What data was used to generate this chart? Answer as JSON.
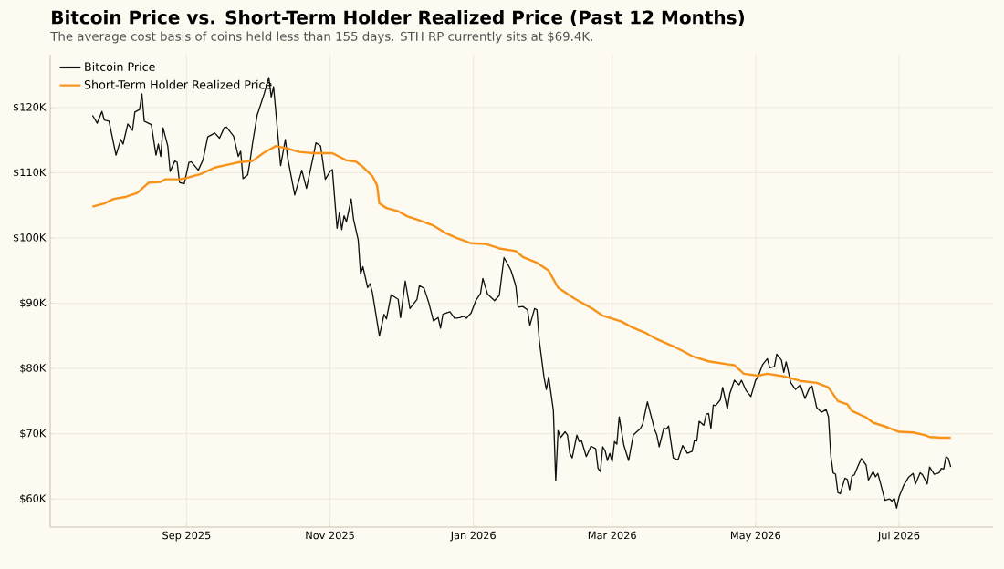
{
  "chart_data": {
    "type": "line",
    "title": "Bitcoin Price vs. Short-Term Holder Realized Price (Past 12 Months)",
    "subtitle": "The average cost basis of coins held less than 155 days. STH RP currently sits at $69.4K.",
    "xlim": [
      "2025-07-05",
      "2026-08-10"
    ],
    "xticks": [
      {
        "value": "2025-09-01",
        "label": "Sep 2025"
      },
      {
        "value": "2025-11-01",
        "label": "Nov 2025"
      },
      {
        "value": "2026-01-01",
        "label": "Jan 2026"
      },
      {
        "value": "2026-03-01",
        "label": "Mar 2026"
      },
      {
        "value": "2026-05-01",
        "label": "May 2026"
      },
      {
        "value": "2026-07-01",
        "label": "Jul 2026"
      }
    ],
    "ylim": [
      55700,
      128100
    ],
    "yticks": [
      {
        "value": 60000,
        "label": "$60K"
      },
      {
        "value": 70000,
        "label": "$70K"
      },
      {
        "value": 80000,
        "label": "$80K"
      },
      {
        "value": 90000,
        "label": "$90K"
      },
      {
        "value": 100000,
        "label": "$100K"
      },
      {
        "value": 110000,
        "label": "$110K"
      },
      {
        "value": 120000,
        "label": "$120K"
      }
    ],
    "grid": true,
    "legend": "top left",
    "marker": "none",
    "line_style": "solid",
    "series": [
      {
        "name": "Bitcoin Price",
        "color": "#111111",
        "x": [
          "2025-07-23",
          "2025-07-25",
          "2025-07-27",
          "2025-07-28",
          "2025-07-30",
          "2025-08-02",
          "2025-08-04",
          "2025-08-05",
          "2025-08-07",
          "2025-08-09",
          "2025-08-10",
          "2025-08-12",
          "2025-08-13",
          "2025-08-14",
          "2025-08-17",
          "2025-08-19",
          "2025-08-20",
          "2025-08-21",
          "2025-08-22",
          "2025-08-24",
          "2025-08-25",
          "2025-08-27",
          "2025-08-28",
          "2025-08-29",
          "2025-08-31",
          "2025-09-02",
          "2025-09-03",
          "2025-09-06",
          "2025-09-08",
          "2025-09-10",
          "2025-09-13",
          "2025-09-15",
          "2025-09-17",
          "2025-09-18",
          "2025-09-21",
          "2025-09-23",
          "2025-09-24",
          "2025-09-25",
          "2025-09-27",
          "2025-09-28",
          "2025-09-29",
          "2025-10-01",
          "2025-10-04",
          "2025-10-06",
          "2025-10-07",
          "2025-10-08",
          "2025-10-10",
          "2025-10-11",
          "2025-10-13",
          "2025-10-14",
          "2025-10-17",
          "2025-10-20",
          "2025-10-22",
          "2025-10-25",
          "2025-10-26",
          "2025-10-28",
          "2025-10-30",
          "2025-11-01",
          "2025-11-02",
          "2025-11-04",
          "2025-11-05",
          "2025-11-06",
          "2025-11-07",
          "2025-11-08",
          "2025-11-10",
          "2025-11-11",
          "2025-11-13",
          "2025-11-14",
          "2025-11-15",
          "2025-11-17",
          "2025-11-18",
          "2025-11-19",
          "2025-11-22",
          "2025-11-24",
          "2025-11-25",
          "2025-11-27",
          "2025-11-30",
          "2025-12-01",
          "2025-12-03",
          "2025-12-05",
          "2025-12-08",
          "2025-12-09",
          "2025-12-11",
          "2025-12-13",
          "2025-12-15",
          "2025-12-17",
          "2025-12-18",
          "2025-12-19",
          "2025-12-22",
          "2025-12-24",
          "2025-12-26",
          "2025-12-28",
          "2025-12-29",
          "2025-12-31",
          "2026-01-02",
          "2026-01-04",
          "2026-01-05",
          "2026-01-07",
          "2026-01-10",
          "2026-01-12",
          "2026-01-14",
          "2026-01-16",
          "2026-01-17",
          "2026-01-19",
          "2026-01-20",
          "2026-01-22",
          "2026-01-24",
          "2026-01-25",
          "2026-01-27",
          "2026-01-28",
          "2026-01-29",
          "2026-01-31",
          "2026-02-01",
          "2026-02-02",
          "2026-02-04",
          "2026-02-05",
          "2026-02-06",
          "2026-02-07",
          "2026-02-09",
          "2026-02-10",
          "2026-02-11",
          "2026-02-12",
          "2026-02-14",
          "2026-02-15",
          "2026-02-16",
          "2026-02-18",
          "2026-02-20",
          "2026-02-22",
          "2026-02-23",
          "2026-02-24",
          "2026-02-25",
          "2026-02-26",
          "2026-02-27",
          "2026-02-28",
          "2026-03-01",
          "2026-03-02",
          "2026-03-03",
          "2026-03-04",
          "2026-03-06",
          "2026-03-08",
          "2026-03-10",
          "2026-03-13",
          "2026-03-14",
          "2026-03-16",
          "2026-03-19",
          "2026-03-20",
          "2026-03-21",
          "2026-03-23",
          "2026-03-24",
          "2026-03-25",
          "2026-03-27",
          "2026-03-29",
          "2026-03-31",
          "2026-04-02",
          "2026-04-04",
          "2026-04-05",
          "2026-04-06",
          "2026-04-07",
          "2026-04-09",
          "2026-04-10",
          "2026-04-11",
          "2026-04-12",
          "2026-04-13",
          "2026-04-14",
          "2026-04-16",
          "2026-04-17",
          "2026-04-19",
          "2026-04-20",
          "2026-04-22",
          "2026-04-24",
          "2026-04-25",
          "2026-04-27",
          "2026-04-29",
          "2026-05-01",
          "2026-05-02",
          "2026-05-04",
          "2026-05-06",
          "2026-05-07",
          "2026-05-09",
          "2026-05-10",
          "2026-05-12",
          "2026-05-13",
          "2026-05-14",
          "2026-05-16",
          "2026-05-18",
          "2026-05-20",
          "2026-05-22",
          "2026-05-24",
          "2026-05-25",
          "2026-05-27",
          "2026-05-29",
          "2026-05-31",
          "2026-06-01",
          "2026-06-02",
          "2026-06-03",
          "2026-06-04",
          "2026-06-05",
          "2026-06-06",
          "2026-06-08",
          "2026-06-09",
          "2026-06-10",
          "2026-06-11",
          "2026-06-12",
          "2026-06-14",
          "2026-06-15",
          "2026-06-17",
          "2026-06-18",
          "2026-06-20",
          "2026-06-21",
          "2026-06-22",
          "2026-06-23",
          "2026-06-25",
          "2026-06-27",
          "2026-06-28",
          "2026-06-29",
          "2026-06-30",
          "2026-07-01",
          "2026-07-03",
          "2026-07-05",
          "2026-07-07",
          "2026-07-08",
          "2026-07-10",
          "2026-07-11",
          "2026-07-13",
          "2026-07-14",
          "2026-07-16",
          "2026-07-18",
          "2026-07-19",
          "2026-07-20",
          "2026-07-21",
          "2026-07-22",
          "2026-07-23"
        ],
        "values": [
          118800,
          117600,
          119400,
          118100,
          117900,
          112700,
          115100,
          114400,
          117500,
          116500,
          119300,
          119700,
          122100,
          117900,
          117400,
          112700,
          114400,
          112500,
          116900,
          114100,
          110200,
          111800,
          111600,
          108500,
          108300,
          111600,
          111700,
          110400,
          112000,
          115500,
          116100,
          115300,
          116900,
          117000,
          115600,
          112500,
          113300,
          109100,
          109700,
          111800,
          114400,
          118800,
          122100,
          124600,
          121600,
          123200,
          115100,
          111100,
          115100,
          112300,
          106600,
          110400,
          107600,
          112700,
          114600,
          114100,
          109000,
          110200,
          110500,
          101500,
          103900,
          101300,
          103400,
          102500,
          106000,
          102900,
          99700,
          94500,
          95600,
          92400,
          93000,
          91700,
          85000,
          88300,
          87600,
          91300,
          90600,
          87800,
          93400,
          89200,
          90600,
          92700,
          92300,
          90100,
          87300,
          87800,
          86200,
          88300,
          88700,
          87700,
          87800,
          88000,
          87700,
          88500,
          90400,
          91500,
          93800,
          91400,
          90400,
          91200,
          97000,
          95700,
          95000,
          92700,
          89400,
          89500,
          89000,
          86600,
          89200,
          89000,
          84300,
          78700,
          76800,
          78700,
          73600,
          62800,
          70500,
          69400,
          70300,
          69800,
          67000,
          66300,
          69800,
          68800,
          68900,
          66500,
          68100,
          67700,
          64700,
          64200,
          68000,
          67400,
          65900,
          67000,
          65700,
          68800,
          68400,
          72600,
          68200,
          65900,
          69800,
          70800,
          71500,
          74900,
          70700,
          69800,
          68000,
          70900,
          70700,
          71200,
          66300,
          66000,
          68200,
          67000,
          67300,
          69000,
          68900,
          71900,
          71300,
          73000,
          73100,
          70800,
          74400,
          74300,
          75200,
          77100,
          73800,
          76100,
          78200,
          77500,
          78200,
          76600,
          75700,
          78200,
          78700,
          80600,
          81500,
          80100,
          80300,
          82200,
          81300,
          79400,
          81000,
          77800,
          76800,
          77500,
          75400,
          77100,
          77300,
          74000,
          73300,
          73700,
          72600,
          66600,
          64000,
          63800,
          61000,
          60800,
          63200,
          63000,
          61400,
          63500,
          63700,
          65400,
          66200,
          65200,
          62900,
          64200,
          63400,
          63900,
          62600,
          59800,
          60000,
          59700,
          60100,
          58600,
          60300,
          62100,
          63300,
          63900,
          62300,
          64000,
          63700,
          62300,
          64900,
          63800,
          64000,
          64700,
          64600,
          66500,
          66200,
          64900
        ]
      },
      {
        "name": "Short-Term Holder Realized Price",
        "color": "#f7931a",
        "x": [
          "2025-07-23",
          "2025-07-28",
          "2025-08-01",
          "2025-08-06",
          "2025-08-11",
          "2025-08-16",
          "2025-08-21",
          "2025-08-23",
          "2025-08-29",
          "2025-09-01",
          "2025-09-07",
          "2025-09-13",
          "2025-09-18",
          "2025-09-23",
          "2025-09-29",
          "2025-10-04",
          "2025-10-09",
          "2025-10-14",
          "2025-10-19",
          "2025-10-25",
          "2025-11-02",
          "2025-11-08",
          "2025-11-12",
          "2025-11-15",
          "2025-11-19",
          "2025-11-21",
          "2025-11-22",
          "2025-11-25",
          "2025-11-30",
          "2025-12-04",
          "2025-12-09",
          "2025-12-15",
          "2025-12-20",
          "2025-12-25",
          "2025-12-31",
          "2026-01-06",
          "2026-01-12",
          "2026-01-19",
          "2026-01-22",
          "2026-01-28",
          "2026-02-02",
          "2026-02-06",
          "2026-02-13",
          "2026-02-20",
          "2026-02-25",
          "2026-03-05",
          "2026-03-09",
          "2026-03-15",
          "2026-03-20",
          "2026-03-27",
          "2026-04-01",
          "2026-04-04",
          "2026-04-11",
          "2026-04-20",
          "2026-04-22",
          "2026-04-26",
          "2026-05-02",
          "2026-05-06",
          "2026-05-13",
          "2026-05-20",
          "2026-05-27",
          "2026-06-01",
          "2026-06-05",
          "2026-06-09",
          "2026-06-11",
          "2026-06-17",
          "2026-06-20",
          "2026-06-26",
          "2026-07-01",
          "2026-07-07",
          "2026-07-12",
          "2026-07-14",
          "2026-07-19",
          "2026-07-23"
        ],
        "values": [
          104800,
          105300,
          106000,
          106300,
          106900,
          108500,
          108600,
          109000,
          109000,
          109200,
          109800,
          110800,
          111200,
          111600,
          111800,
          113100,
          114100,
          113700,
          113200,
          113000,
          113000,
          111900,
          111700,
          110900,
          109500,
          108100,
          105300,
          104600,
          104100,
          103300,
          102700,
          101900,
          100800,
          100000,
          99200,
          99100,
          98400,
          98000,
          97100,
          96200,
          95000,
          92400,
          90700,
          89300,
          88100,
          87200,
          86400,
          85500,
          84500,
          83400,
          82500,
          81900,
          81100,
          80600,
          80500,
          79200,
          78900,
          79200,
          78800,
          78100,
          77800,
          77100,
          75000,
          74500,
          73500,
          72500,
          71700,
          71000,
          70300,
          70200,
          69800,
          69500,
          69400,
          69400
        ]
      }
    ]
  }
}
